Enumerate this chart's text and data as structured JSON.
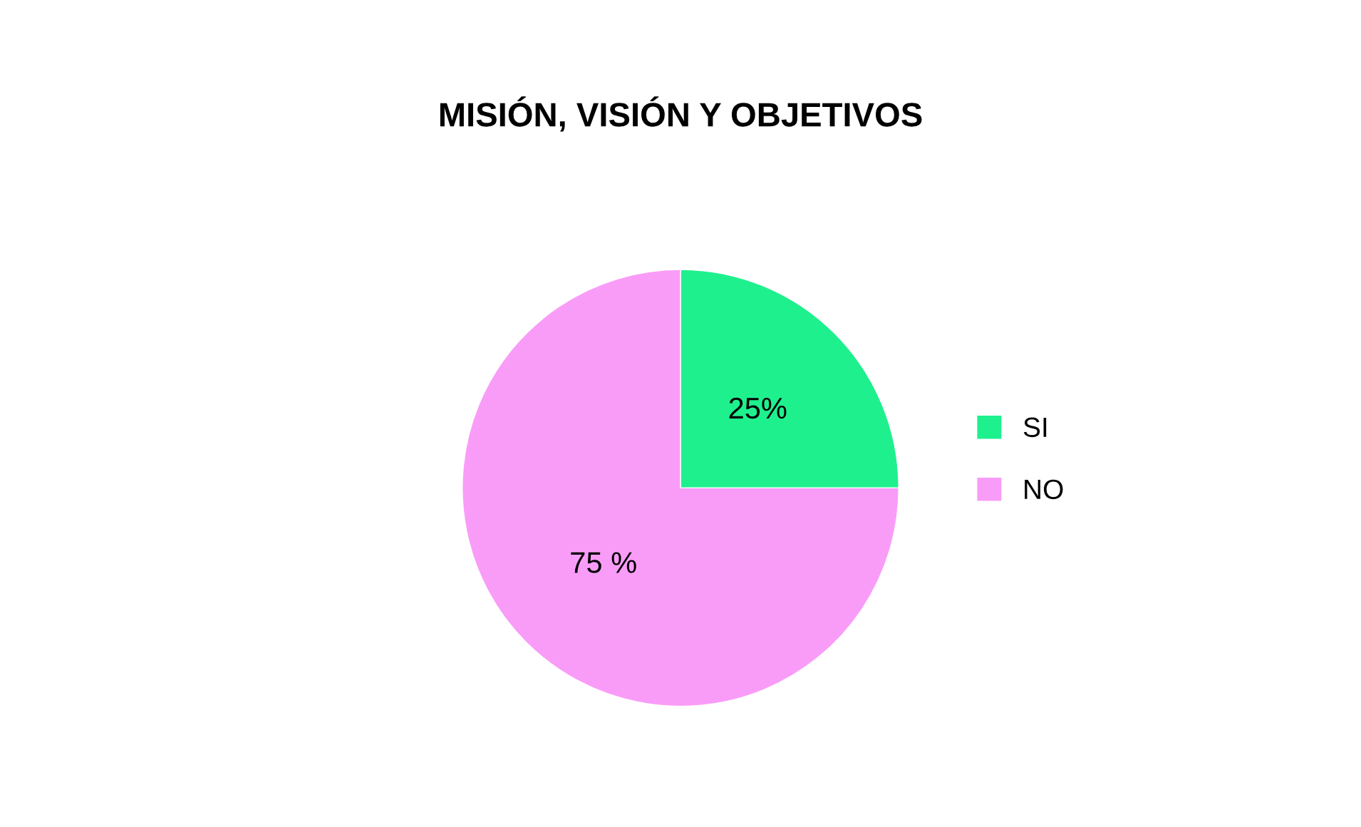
{
  "chart_data": {
    "type": "pie",
    "title": "MISIÓN, VISIÓN Y OBJETIVOS",
    "categories": [
      "SI",
      "NO"
    ],
    "values": [
      25,
      75
    ],
    "colors": [
      "#1ef08e",
      "#f99cf8"
    ],
    "value_labels": [
      "25%",
      "75 %"
    ],
    "legend": "right"
  }
}
